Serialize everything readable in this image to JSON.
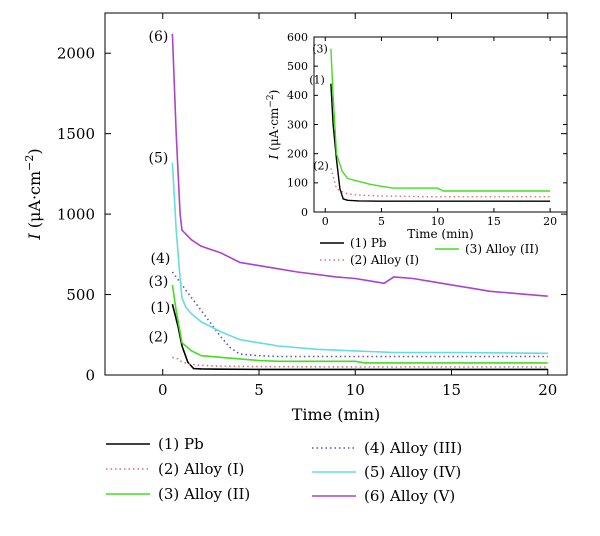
{
  "chart_data": [
    {
      "type": "line",
      "title": "",
      "xlabel": "Time (min)",
      "ylabel": "I (μA·cm⁻²)",
      "ylabel_parts": {
        "var": "I",
        "open": "(",
        "unit": "μA·cm",
        "sup": "−2",
        "close": ")"
      },
      "xlim": [
        -3,
        21
      ],
      "ylim": [
        0,
        2250
      ],
      "xticks": [
        0,
        5,
        10,
        15,
        20
      ],
      "yticks": [
        0,
        500,
        1000,
        1500,
        2000
      ],
      "grid": false,
      "legend_position": "bottom",
      "series": [
        {
          "name": "(1) Pb",
          "label": "(1)",
          "color": "#000000",
          "dash": "solid",
          "x": [
            0.5,
            0.8,
            1.0,
            1.3,
            1.6,
            2,
            3,
            5,
            10,
            15,
            20
          ],
          "y": [
            440,
            300,
            180,
            80,
            40,
            38,
            36,
            35,
            35,
            35,
            35
          ]
        },
        {
          "name": "(2) Alloy (I)",
          "label": "(2)",
          "color": "#e07070",
          "dash": "dot",
          "x": [
            0.5,
            0.8,
            1.0,
            1.5,
            2,
            3,
            5,
            10,
            15,
            20
          ],
          "y": [
            110,
            100,
            80,
            65,
            60,
            55,
            52,
            50,
            50,
            50
          ]
        },
        {
          "name": "(3) Alloy (II)",
          "label": "(3)",
          "color": "#44dd22",
          "dash": "solid",
          "x": [
            0.5,
            0.7,
            1.0,
            1.5,
            2,
            3,
            4,
            5,
            6,
            10,
            10.5,
            15,
            20
          ],
          "y": [
            560,
            400,
            200,
            150,
            120,
            110,
            100,
            90,
            85,
            85,
            75,
            75,
            75
          ]
        },
        {
          "name": "(4) Alloy (III)",
          "label": "(4)",
          "color": "#5555bb",
          "dash": "dot",
          "x": [
            0.5,
            1,
            1.5,
            2,
            2.5,
            3,
            3.5,
            4,
            5,
            6,
            10,
            15,
            20
          ],
          "y": [
            640,
            560,
            480,
            400,
            320,
            240,
            170,
            130,
            120,
            115,
            115,
            115,
            115
          ]
        },
        {
          "name": "(5) Alloy (IV)",
          "label": "(5)",
          "color": "#66dddd",
          "dash": "solid",
          "x": [
            0.5,
            0.7,
            0.9,
            1.0,
            1.2,
            1.5,
            2,
            3,
            4,
            5,
            6,
            8,
            10,
            12,
            15,
            20
          ],
          "y": [
            1320,
            900,
            600,
            480,
            420,
            380,
            330,
            270,
            220,
            200,
            180,
            160,
            150,
            140,
            140,
            135
          ]
        },
        {
          "name": "(6) Alloy (V)",
          "label": "(6)",
          "color": "#aa44cc",
          "dash": "solid",
          "x": [
            0.5,
            0.7,
            0.9,
            1.0,
            1.5,
            2,
            3,
            4,
            5,
            6,
            7,
            8,
            9,
            10,
            11,
            11.5,
            12,
            13,
            14,
            15,
            16,
            17,
            18,
            19,
            20
          ],
          "y": [
            2120,
            1500,
            1000,
            900,
            840,
            800,
            760,
            700,
            680,
            660,
            640,
            625,
            610,
            600,
            580,
            570,
            610,
            600,
            580,
            560,
            540,
            520,
            510,
            500,
            490
          ]
        }
      ]
    },
    {
      "type": "line",
      "role": "inset",
      "title": "",
      "xlabel": "Time (min)",
      "ylabel": "I (μA·cm⁻²)",
      "ylabel_parts": {
        "var": "I",
        "open": "(",
        "unit": "μA·cm",
        "sup": "−2",
        "close": ")"
      },
      "xlim": [
        -1,
        21.5
      ],
      "ylim": [
        0,
        600
      ],
      "xticks": [
        0,
        5,
        10,
        15,
        20
      ],
      "yticks": [
        0,
        100,
        200,
        300,
        400,
        500,
        600
      ],
      "grid": false,
      "legend_position": "below",
      "series": [
        {
          "name": "(1) Pb",
          "label": "(1)",
          "color": "#000000",
          "dash": "solid",
          "x": [
            0.5,
            0.7,
            1.0,
            1.3,
            1.6,
            2,
            3,
            5,
            10,
            15,
            20
          ],
          "y": [
            440,
            300,
            180,
            80,
            45,
            40,
            38,
            37,
            37,
            37,
            37
          ]
        },
        {
          "name": "(2) Alloy (I)",
          "label": "(2)",
          "color": "#e07070",
          "dash": "dot",
          "x": [
            0.5,
            0.8,
            1.0,
            1.5,
            2,
            3,
            5,
            10,
            15,
            20
          ],
          "y": [
            150,
            110,
            80,
            70,
            62,
            58,
            55,
            52,
            52,
            52
          ]
        },
        {
          "name": "(3) Alloy (II)",
          "label": "(3)",
          "color": "#44dd22",
          "dash": "solid",
          "x": [
            0.5,
            0.7,
            1.0,
            1.5,
            2,
            3,
            4,
            5,
            6,
            10,
            10.5,
            15,
            20
          ],
          "y": [
            560,
            400,
            200,
            140,
            115,
            105,
            95,
            88,
            82,
            82,
            72,
            72,
            72
          ]
        }
      ]
    }
  ]
}
